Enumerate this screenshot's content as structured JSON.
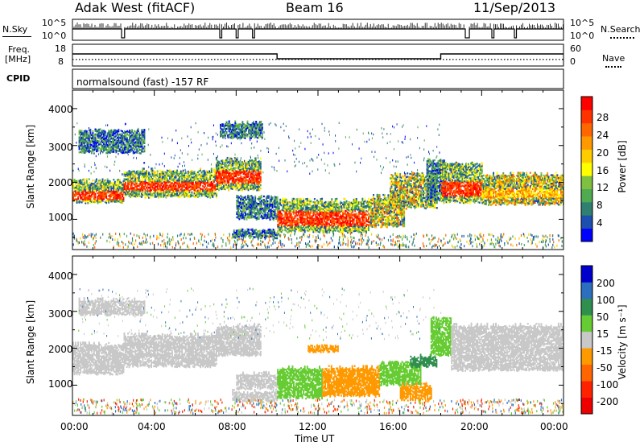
{
  "header": {
    "station": "Adak West (fitACF)",
    "beam": "Beam 16",
    "date": "11/Sep/2013"
  },
  "strip_labels": {
    "nsky": "N.Sky",
    "freq": "Freq.",
    "freq_unit": "[MHz]",
    "cpid": "CPID",
    "nsearch": "N.Search",
    "nave": "Nave",
    "cpid_text": "normalsound (fast) -157 RF"
  },
  "strip_ticks": {
    "noise_left": [
      "10^5",
      "10^0"
    ],
    "noise_right": [
      "10^5",
      "10^0"
    ],
    "freq_left": [
      "18",
      "8"
    ],
    "freq_right": [
      "60",
      "0"
    ]
  },
  "chart_data": [
    {
      "type": "line",
      "panel": "noise",
      "series": [
        {
          "name": "N.Sky",
          "style": "solid",
          "segments": [
            [
              0,
              2.4,
              "high"
            ],
            [
              2.4,
              2.55,
              "low"
            ],
            [
              2.55,
              7.2,
              "high"
            ],
            [
              7.2,
              7.3,
              "low"
            ],
            [
              7.3,
              8.0,
              "high"
            ],
            [
              8.0,
              8.1,
              "low"
            ],
            [
              8.1,
              8.8,
              "high"
            ],
            [
              8.8,
              8.9,
              "low"
            ],
            [
              8.9,
              19.2,
              "high"
            ],
            [
              19.2,
              19.4,
              "low"
            ],
            [
              19.4,
              20.5,
              "high"
            ],
            [
              20.5,
              20.6,
              "low"
            ],
            [
              20.6,
              21.6,
              "high"
            ],
            [
              21.6,
              21.7,
              "low"
            ],
            [
              21.7,
              24,
              "high"
            ]
          ]
        },
        {
          "name": "N.Search",
          "style": "dotted"
        }
      ]
    },
    {
      "type": "line",
      "panel": "frequency",
      "series": [
        {
          "name": "Freq.",
          "style": "solid",
          "steps": [
            [
              0,
              10,
              14
            ],
            [
              10,
              18,
              11
            ],
            [
              18,
              24,
              14
            ]
          ]
        },
        {
          "name": "Nave",
          "style": "dotted",
          "value": 18
        }
      ]
    },
    {
      "type": "heatmap",
      "panel": "power",
      "xlabel": "Time UT",
      "ylabel": "Slant Range [km]",
      "x_ticks": [
        "00:00",
        "04:00",
        "08:00",
        "12:00",
        "16:00",
        "20:00",
        "00:00"
      ],
      "y_ticks": [
        "1000",
        "2000",
        "3000",
        "4000"
      ],
      "xlim": [
        0,
        24
      ],
      "ylim": [
        180,
        4500
      ],
      "colorbar": {
        "label": "Power [dB]",
        "ticks": [
          "4",
          "8",
          "12",
          "16",
          "20",
          "24",
          "28"
        ],
        "colors": [
          "#0000ff",
          "#1d4fb0",
          "#2f8070",
          "#4faa50",
          "#7fc040",
          "#ffff00",
          "#ffcc00",
          "#ff9900",
          "#ff6600",
          "#ff3300",
          "#ff0000"
        ]
      },
      "bands": [
        {
          "t0": 0.0,
          "t1": 2.5,
          "r0": 1450,
          "r1": 2050,
          "core0": 1500,
          "core1": 1750,
          "v": "high"
        },
        {
          "t0": 2.5,
          "t1": 7.0,
          "r0": 1600,
          "r1": 2300,
          "core0": 1750,
          "core1": 2000,
          "v": "high"
        },
        {
          "t0": 7.0,
          "t1": 9.2,
          "r0": 1800,
          "r1": 2600,
          "core0": 1950,
          "core1": 2300,
          "v": "high"
        },
        {
          "t0": 0.3,
          "t1": 3.5,
          "r0": 2800,
          "r1": 3400,
          "v": "low"
        },
        {
          "t0": 7.2,
          "t1": 9.3,
          "r0": 3200,
          "r1": 3600,
          "v": "low"
        },
        {
          "t0": 8.0,
          "t1": 10.0,
          "r0": 1000,
          "r1": 1600,
          "v": "low"
        },
        {
          "t0": 7.8,
          "t1": 10.0,
          "r0": 500,
          "r1": 700,
          "v": "low"
        },
        {
          "t0": 10.0,
          "t1": 14.5,
          "r0": 650,
          "r1": 1500,
          "core0": 800,
          "core1": 1200,
          "v": "high"
        },
        {
          "t0": 14.5,
          "t1": 16.2,
          "r0": 800,
          "r1": 1600,
          "v": "mid"
        },
        {
          "t0": 15.5,
          "t1": 17.8,
          "r0": 1300,
          "r1": 2200,
          "v": "mid"
        },
        {
          "t0": 17.3,
          "t1": 18.2,
          "r0": 1500,
          "r1": 2600,
          "v": "low"
        },
        {
          "t0": 18.0,
          "t1": 20.0,
          "r0": 1450,
          "r1": 2500,
          "core0": 1600,
          "core1": 2000,
          "v": "high"
        },
        {
          "t0": 20.0,
          "t1": 24.0,
          "r0": 1400,
          "r1": 2200,
          "core0": 1550,
          "core1": 1800,
          "v": "mid"
        }
      ]
    },
    {
      "type": "heatmap",
      "panel": "velocity",
      "xlabel": "Time UT",
      "ylabel": "Slant Range [km]",
      "x_ticks": [
        "00:00",
        "04:00",
        "08:00",
        "12:00",
        "16:00",
        "20:00",
        "00:00"
      ],
      "y_ticks": [
        "1000",
        "2000",
        "3000",
        "4000"
      ],
      "xlim": [
        0,
        24
      ],
      "ylim": [
        180,
        4500
      ],
      "colorbar": {
        "label": "Velocity [m s⁻¹]",
        "ticks": [
          "200",
          "100",
          "50",
          "15",
          "-15",
          "-50",
          "-100",
          "-200"
        ],
        "colors": [
          "#0000cc",
          "#2c6fbf",
          "#2f8f4f",
          "#66cc33",
          "#c8c8c8",
          "#ff9900",
          "#ff6600",
          "#ff2200",
          "#ee0000"
        ]
      },
      "bands": [
        {
          "t0": 0.0,
          "t1": 2.5,
          "r0": 1300,
          "r1": 2100,
          "c": "#c8c8c8"
        },
        {
          "t0": 2.5,
          "t1": 7.0,
          "r0": 1500,
          "r1": 2350,
          "c": "#c8c8c8"
        },
        {
          "t0": 7.0,
          "t1": 9.2,
          "r0": 1800,
          "r1": 2600,
          "c": "#c8c8c8"
        },
        {
          "t0": 0.3,
          "t1": 3.5,
          "r0": 2900,
          "r1": 3300,
          "c": "#c8c8c8"
        },
        {
          "t0": 8.0,
          "t1": 10.0,
          "r0": 900,
          "r1": 1300,
          "c": "#c8c8c8"
        },
        {
          "t0": 7.8,
          "t1": 10.0,
          "r0": 550,
          "r1": 800,
          "c": "#c8c8c8"
        },
        {
          "t0": 10.0,
          "t1": 12.2,
          "r0": 650,
          "r1": 1450,
          "c": "#66cc33"
        },
        {
          "t0": 12.2,
          "t1": 15.0,
          "r0": 700,
          "r1": 1450,
          "c": "#ff9900"
        },
        {
          "t0": 15.0,
          "t1": 17.0,
          "r0": 1000,
          "r1": 1600,
          "c": "#66cc33"
        },
        {
          "t0": 16.0,
          "t1": 17.5,
          "r0": 600,
          "r1": 1000,
          "c": "#ff9900"
        },
        {
          "t0": 11.5,
          "t1": 13.0,
          "r0": 1900,
          "r1": 2050,
          "c": "#ff9900"
        },
        {
          "t0": 16.5,
          "t1": 17.8,
          "r0": 1500,
          "r1": 1750,
          "c": "#2f8f4f"
        },
        {
          "t0": 17.5,
          "t1": 18.5,
          "r0": 1800,
          "r1": 2800,
          "c": "#66cc33"
        },
        {
          "t0": 18.5,
          "t1": 24.0,
          "r0": 1400,
          "r1": 2600,
          "c": "#c8c8c8"
        }
      ]
    }
  ]
}
